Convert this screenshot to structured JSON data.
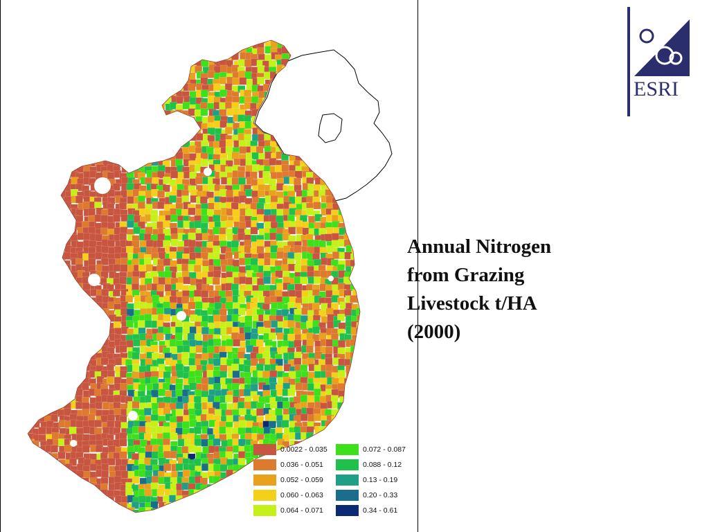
{
  "slide": {
    "title_lines": [
      "Annual Nitrogen",
      "from Grazing",
      "Livestock t/HA",
      "(2000)"
    ]
  },
  "logo": {
    "text": "ESRI",
    "color": "#2b2e6d"
  },
  "legend": {
    "classes": [
      {
        "label": "0.0022 - 0.035",
        "color": "#c8553f"
      },
      {
        "label": "0.036 - 0.051",
        "color": "#de7a2e"
      },
      {
        "label": "0.052 - 0.059",
        "color": "#eaa21c"
      },
      {
        "label": "0.060 - 0.063",
        "color": "#f5d01a"
      },
      {
        "label": "0.064 - 0.071",
        "color": "#c6f01a"
      },
      {
        "label": "0.072 - 0.087",
        "color": "#3ee01c"
      },
      {
        "label": "0.088 - 0.12",
        "color": "#1fc14a"
      },
      {
        "label": "0.13 - 0.19",
        "color": "#1f9f86"
      },
      {
        "label": "0.20 - 0.33",
        "color": "#1b6d8c"
      },
      {
        "label": "0.34 - 0.61",
        "color": "#0b2a73"
      }
    ]
  },
  "map": {
    "subject": "Ireland choropleth by district",
    "background_region_color": "#ffffff"
  }
}
